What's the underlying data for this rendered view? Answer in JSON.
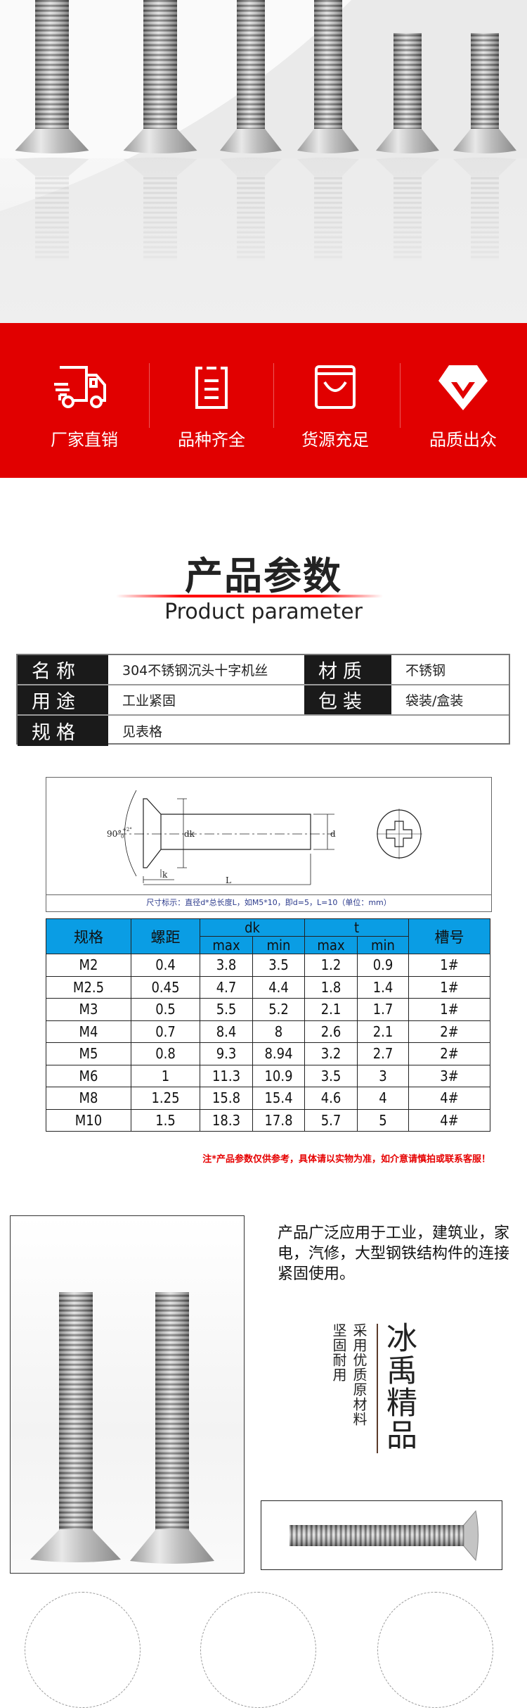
{
  "hero": {
    "image": "stainless-countersunk-screws-photo",
    "screw_count": 6
  },
  "features": [
    {
      "icon": "truck-icon",
      "label": "厂家直销"
    },
    {
      "icon": "clipboard-icon",
      "label": "品种齐全"
    },
    {
      "icon": "shopping-bag-icon",
      "label": "货源充足"
    },
    {
      "icon": "diamond-icon",
      "label": "品质出众"
    }
  ],
  "section": {
    "title": "产品参数",
    "subtitle": "Product parameter"
  },
  "info": {
    "name_label": "名称",
    "name_value": "304不锈钢沉头十字机丝",
    "material_label": "材质",
    "material_value": "不锈钢",
    "use_label": "用途",
    "use_value": "工业紧固",
    "package_label": "包装",
    "package_value": "袋装/盒装",
    "spec_label": "规格",
    "spec_value": "见表格"
  },
  "diagram": {
    "angle": "90°",
    "angle_tol": "+2°",
    "angle_tol_low": "0",
    "dk": "dk",
    "d": "d",
    "k": "k",
    "L": "L",
    "caption": "尺寸标示：直径d*总长度L，如M5*10，即d=5，L=10（单位：mm）"
  },
  "spec_table": {
    "headers": {
      "spec": "规格",
      "pitch": "螺距",
      "dk": "dk",
      "t": "t",
      "slot": "槽号",
      "max": "max",
      "min": "min"
    },
    "rows": [
      [
        "M2",
        "0.4",
        "3.8",
        "3.5",
        "1.2",
        "0.9",
        "1#"
      ],
      [
        "M2.5",
        "0.45",
        "4.7",
        "4.4",
        "1.8",
        "1.4",
        "1#"
      ],
      [
        "M3",
        "0.5",
        "5.5",
        "5.2",
        "2.1",
        "1.7",
        "1#"
      ],
      [
        "M4",
        "0.7",
        "8.4",
        "8",
        "2.6",
        "2.1",
        "2#"
      ],
      [
        "M5",
        "0.8",
        "9.3",
        "8.94",
        "3.2",
        "2.7",
        "2#"
      ],
      [
        "M6",
        "1",
        "11.3",
        "10.9",
        "3.5",
        "3",
        "3#"
      ],
      [
        "M8",
        "1.25",
        "15.8",
        "15.4",
        "4.6",
        "4",
        "4#"
      ],
      [
        "M10",
        "1.5",
        "18.3",
        "17.8",
        "5.7",
        "5",
        "4#"
      ]
    ]
  },
  "note": "注*产品参数仅供参考，具体请以实物为准，如介意请慎拍或联系客服！",
  "detail": {
    "description": "产品广泛应用于工业，建筑业，家电，汽修，大型钢铁结构件的连接紧固使用。",
    "brand": "冰禹精品",
    "slogan1": "采用优质原材料",
    "slogan2": "坚固耐用"
  },
  "colors": {
    "red": "#e10000",
    "table_header": "#0a9de4",
    "label_bg": "#1a1a1a",
    "note": "#e60000"
  }
}
